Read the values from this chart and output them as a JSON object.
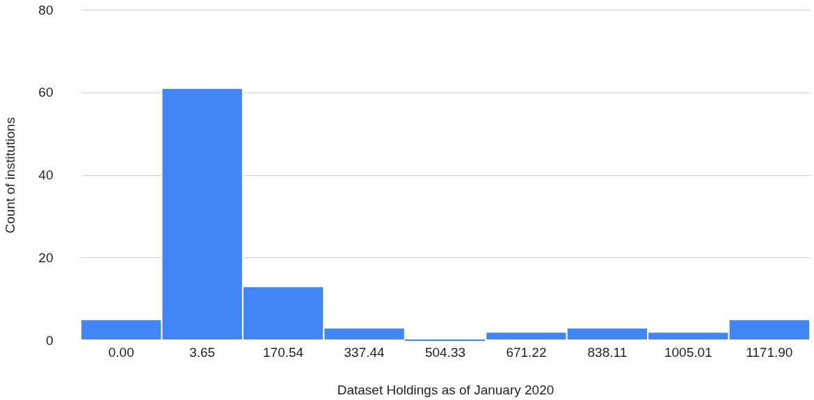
{
  "chart_data": {
    "type": "bar",
    "xlabel": "Dataset Holdings as of January 2020",
    "ylabel": "Count of institutions",
    "categories": [
      "0.00",
      "3.65",
      "170.54",
      "337.44",
      "504.33",
      "671.22",
      "838.11",
      "1005.01",
      "1171.90"
    ],
    "values": [
      5,
      61,
      13,
      3,
      0,
      2,
      3,
      2,
      5
    ],
    "color": "#4285f4",
    "ylim": [
      0,
      80
    ],
    "yticks": [
      0,
      20,
      40,
      60,
      80
    ],
    "grid": "y"
  }
}
